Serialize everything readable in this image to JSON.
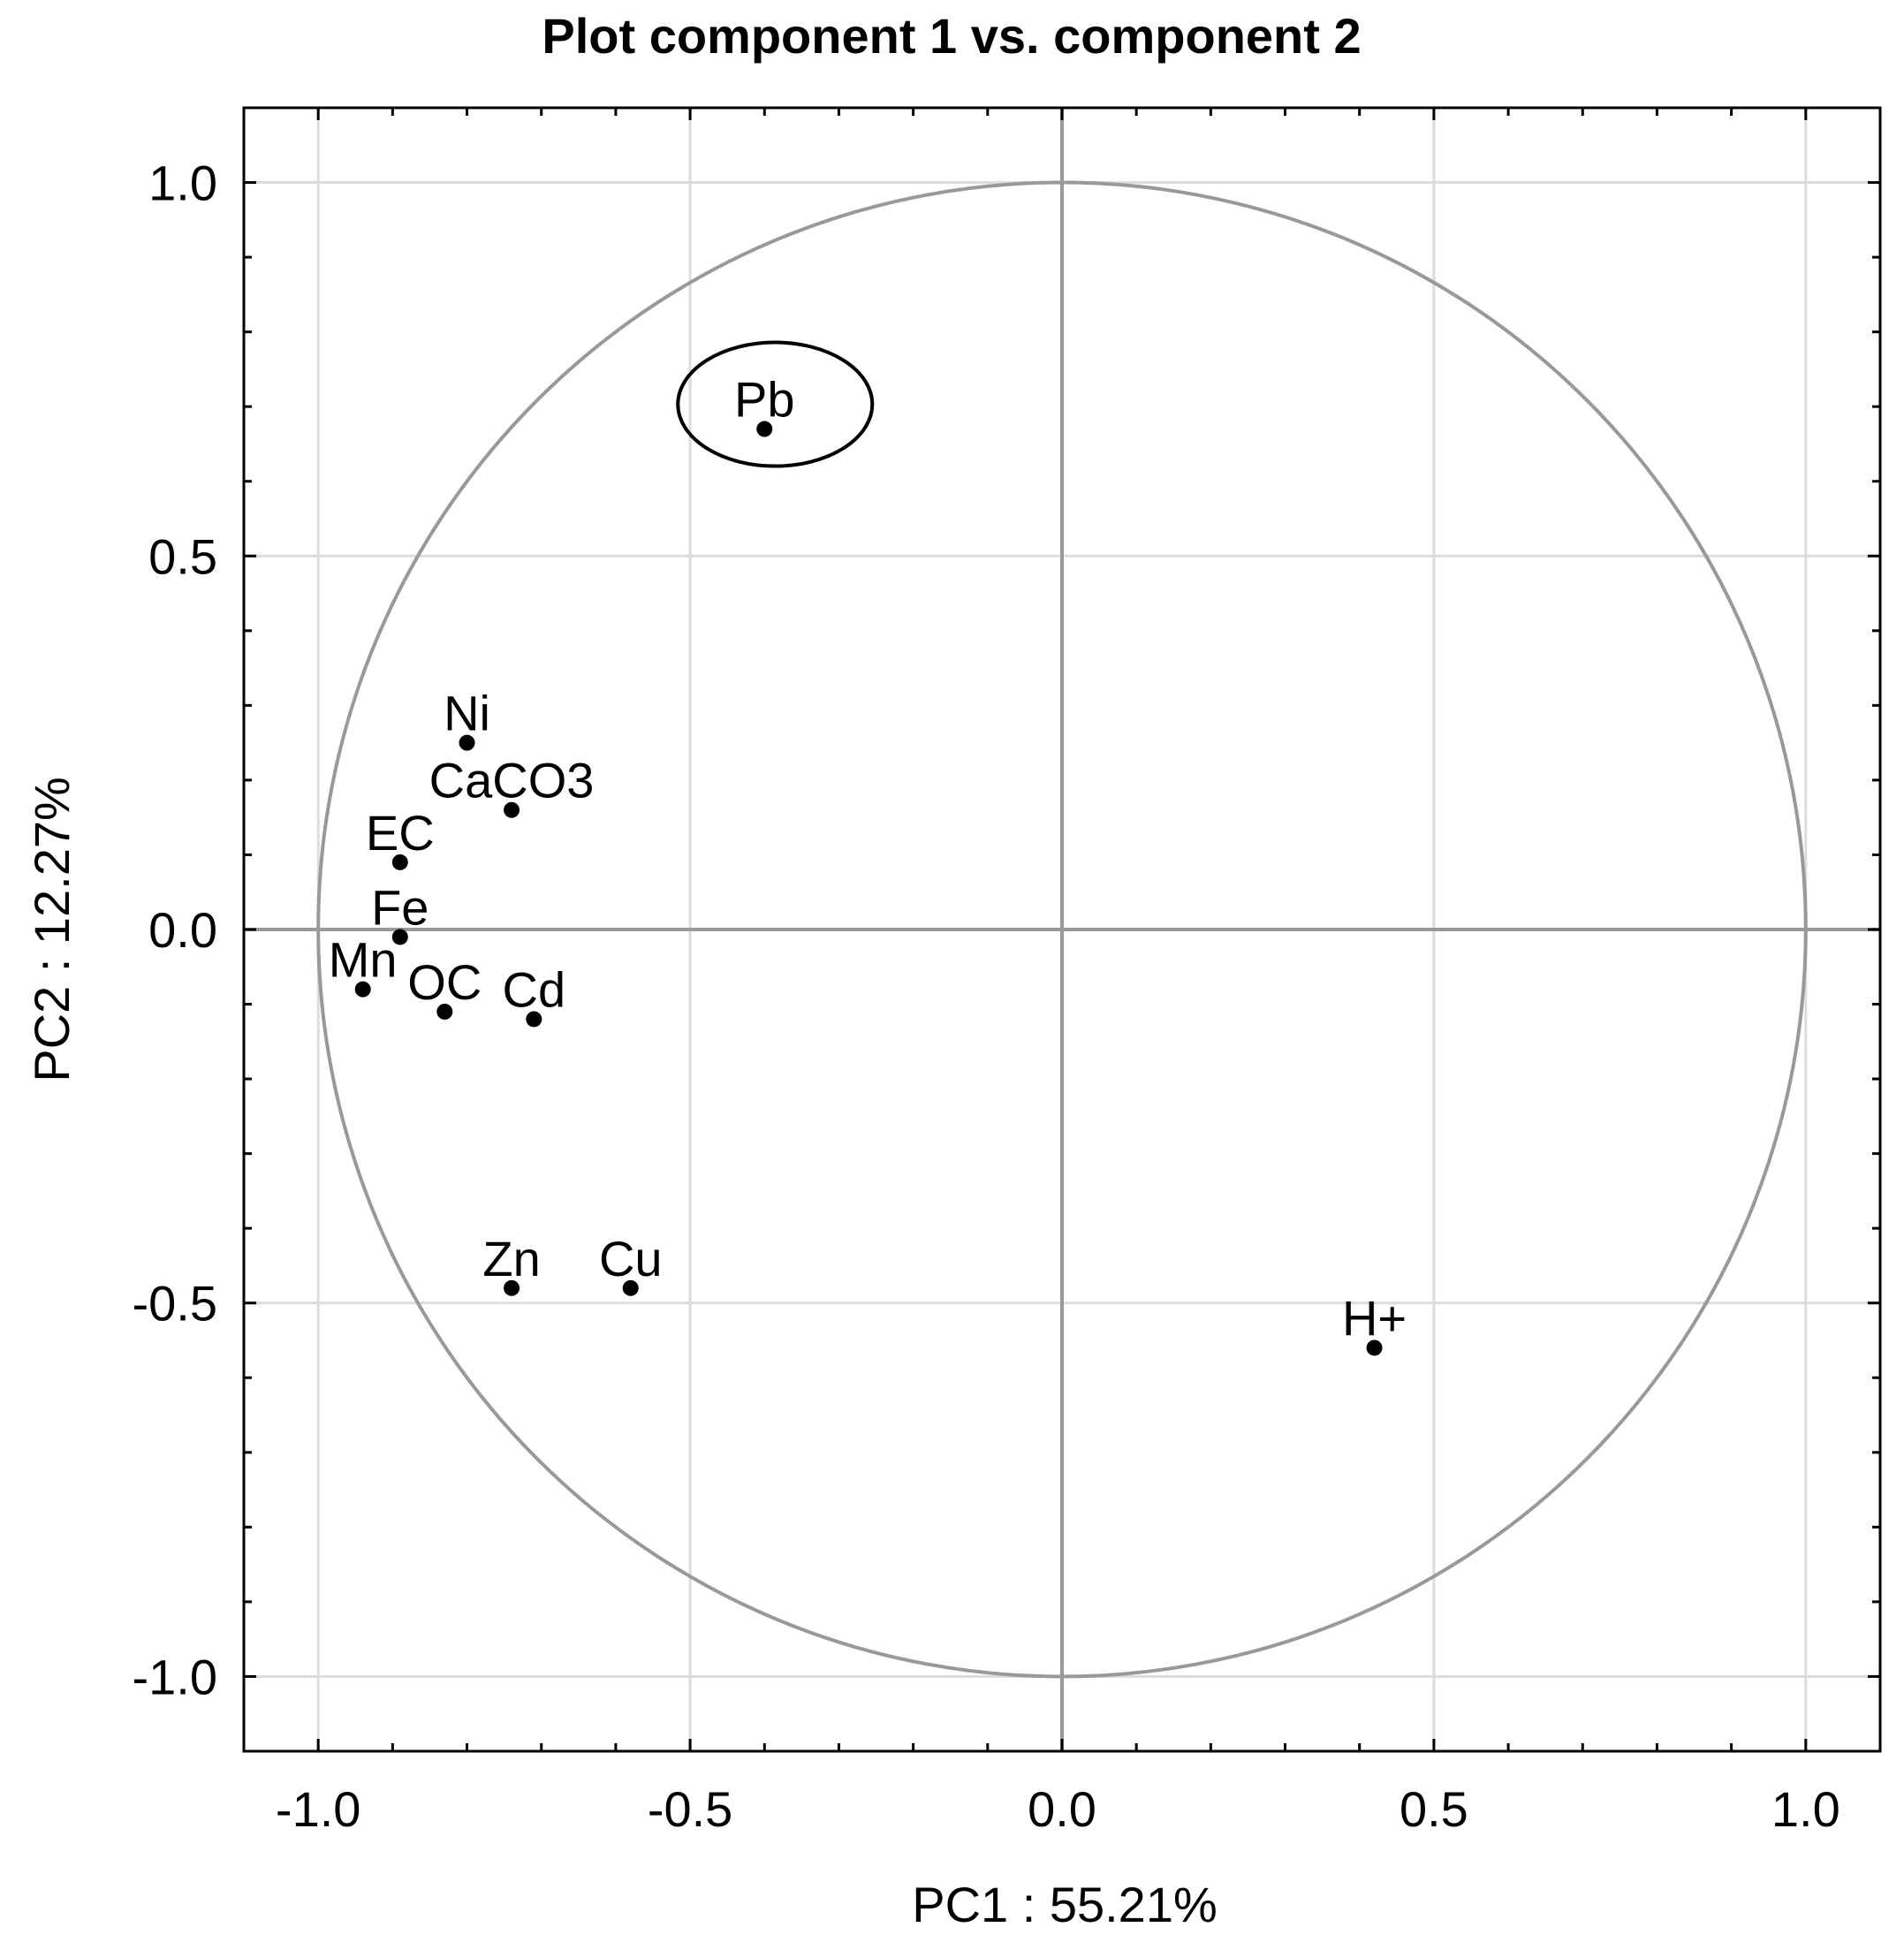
{
  "chart_data": {
    "type": "scatter",
    "title": "Plot component 1 vs. component 2",
    "xlabel": "PC1 : 55.21%",
    "ylabel": "PC2 : 12.27%",
    "xlim": [
      -1.1,
      1.1
    ],
    "ylim": [
      -1.1,
      1.1
    ],
    "xticks": [
      -1.0,
      -0.5,
      0.0,
      0.5,
      1.0
    ],
    "xtick_labels": [
      "-1.0",
      "-0.5",
      "0.0",
      "0.5",
      "1.0"
    ],
    "yticks": [
      1.0,
      0.5,
      0.0,
      -0.5,
      -1.0
    ],
    "ytick_labels": [
      "1.0",
      "0.5",
      "0.0",
      "-0.5",
      "-1.0"
    ],
    "grid": true,
    "unit_circle": true,
    "points": [
      {
        "name": "Pb",
        "x": -0.4,
        "y": 0.67,
        "highlighted": true
      },
      {
        "name": "Ni",
        "x": -0.8,
        "y": 0.25
      },
      {
        "name": "CaCO3",
        "x": -0.74,
        "y": 0.16
      },
      {
        "name": "EC",
        "x": -0.89,
        "y": 0.09
      },
      {
        "name": "Fe",
        "x": -0.89,
        "y": -0.01
      },
      {
        "name": "Mn",
        "x": -0.94,
        "y": -0.08
      },
      {
        "name": "OC",
        "x": -0.83,
        "y": -0.11
      },
      {
        "name": "Cd",
        "x": -0.71,
        "y": -0.12
      },
      {
        "name": "Zn",
        "x": -0.74,
        "y": -0.48
      },
      {
        "name": "Cu",
        "x": -0.58,
        "y": -0.48
      },
      {
        "name": "H+",
        "x": 0.42,
        "y": -0.56
      }
    ]
  }
}
